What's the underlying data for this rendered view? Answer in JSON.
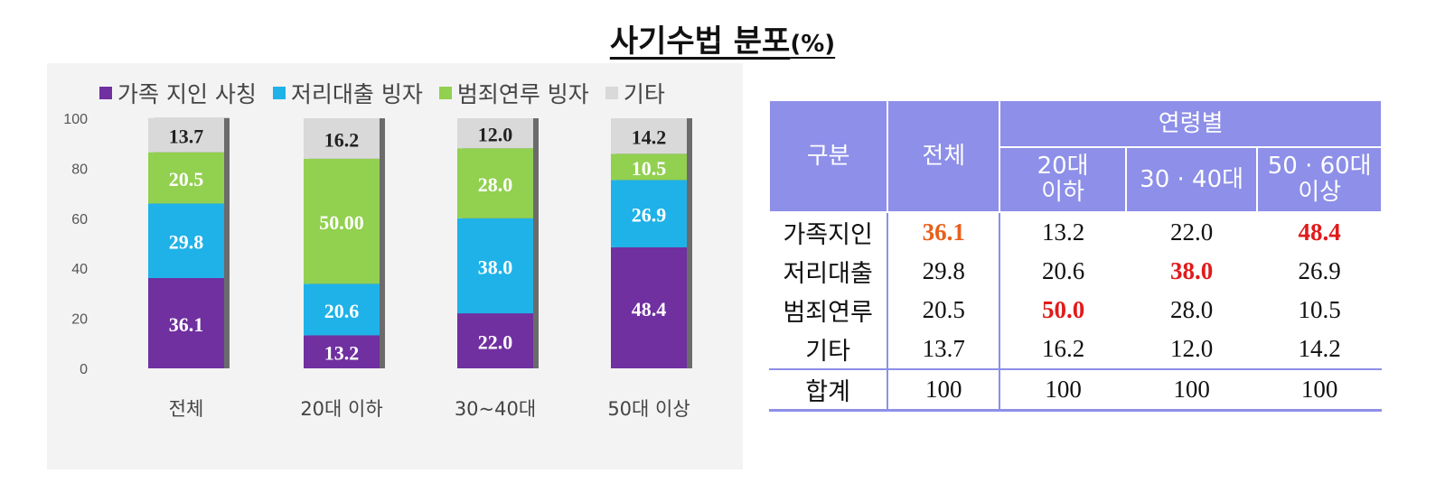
{
  "title": {
    "main": "사기수법  분포",
    "unit": "(%)"
  },
  "colors": {
    "family": "#7030a0",
    "loan": "#1fb2e8",
    "crime": "#92d050",
    "other": "#d9d9d9",
    "header_bg": "#8d8fe8",
    "highlight_orange": "#e8601c",
    "highlight_red": "#e11b1b"
  },
  "chart_data": {
    "type": "bar",
    "stacked": true,
    "categories": [
      "전체",
      "20대 이하",
      "30~40대",
      "50대 이상"
    ],
    "series": [
      {
        "name": "가족 지인 사칭",
        "values": [
          36.1,
          13.2,
          22.0,
          48.4
        ],
        "labels": [
          "36.1",
          "13.2",
          "22.0",
          "48.4"
        ],
        "color": "#7030a0"
      },
      {
        "name": "저리대출 빙자",
        "values": [
          29.8,
          20.6,
          38.0,
          26.9
        ],
        "labels": [
          "29.8",
          "20.6",
          "38.0",
          "26.9"
        ],
        "color": "#1fb2e8"
      },
      {
        "name": "범죄연루 빙자",
        "values": [
          20.5,
          50.0,
          28.0,
          10.5
        ],
        "labels": [
          "20.5",
          "50.00",
          "28.0",
          "10.5"
        ],
        "color": "#92d050"
      },
      {
        "name": "기타",
        "values": [
          13.7,
          16.2,
          12.0,
          14.2
        ],
        "labels": [
          "13.7",
          "16.2",
          "12.0",
          "14.2"
        ],
        "color": "#d9d9d9"
      }
    ],
    "yticks": [
      "0",
      "20",
      "40",
      "60",
      "80",
      "100"
    ],
    "ylim": [
      0,
      100
    ],
    "legend": "top"
  },
  "table": {
    "header": {
      "col_group": "구분",
      "col_total": "전체",
      "col_age_group": "연령별",
      "age_cols": [
        {
          "line1": "20대",
          "line2": "이하"
        },
        {
          "line1": "30 · 40대",
          "line2": ""
        },
        {
          "line1": "50 · 60대",
          "line2": "이상"
        }
      ]
    },
    "rows": [
      {
        "label": "가족지인",
        "cells": [
          "36.1",
          "13.2",
          "22.0",
          "48.4"
        ],
        "highlight": [
          "orange",
          "",
          "",
          "red"
        ]
      },
      {
        "label": "저리대출",
        "cells": [
          "29.8",
          "20.6",
          "38.0",
          "26.9"
        ],
        "highlight": [
          "",
          "",
          "red",
          ""
        ]
      },
      {
        "label": "범죄연루",
        "cells": [
          "20.5",
          "50.0",
          "28.0",
          "10.5"
        ],
        "highlight": [
          "",
          "red",
          "",
          ""
        ]
      },
      {
        "label": "기타",
        "cells": [
          "13.7",
          "16.2",
          "12.0",
          "14.2"
        ],
        "highlight": [
          "",
          "",
          "",
          ""
        ]
      },
      {
        "label": "합계",
        "cells": [
          "100",
          "100",
          "100",
          "100"
        ],
        "highlight": [
          "",
          "",
          "",
          ""
        ]
      }
    ]
  }
}
